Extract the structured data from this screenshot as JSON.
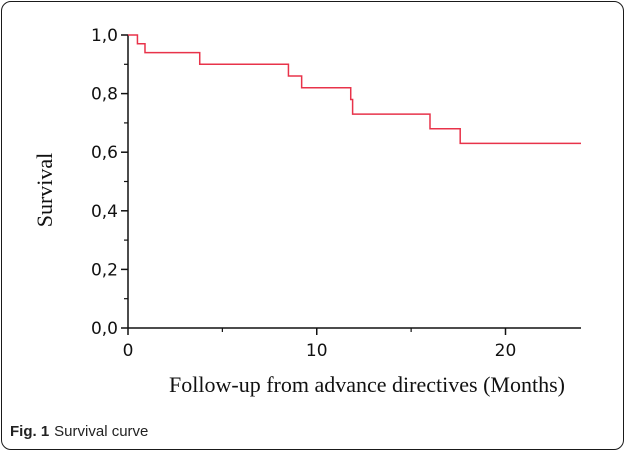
{
  "caption": {
    "label": "Fig. 1",
    "text": "Survival curve"
  },
  "chart_data": {
    "type": "line",
    "line_shape": "step",
    "title": "",
    "xlabel": "Follow-up from advance directives (Months)",
    "ylabel": "Survival",
    "xlim": [
      0,
      24
    ],
    "ylim": [
      0,
      1
    ],
    "x_major_ticks": [
      0,
      10,
      20
    ],
    "x_tick_labels": [
      "0",
      "10",
      "20"
    ],
    "x_minor_ticks": [
      5,
      15
    ],
    "y_major_ticks": [
      0,
      0.2,
      0.4,
      0.6,
      0.8,
      1.0
    ],
    "y_tick_labels": [
      "0,0",
      "0,2",
      "0,4",
      "0,6",
      "0,8",
      "1,0"
    ],
    "y_minor_ticks": [
      0.1,
      0.3,
      0.5,
      0.7,
      0.9
    ],
    "grid": false,
    "line_color": "#e8334a",
    "series": [
      {
        "x": [
          0,
          0.5,
          0.9,
          3.8,
          8.5,
          9.2,
          11.8,
          11.9,
          16.0,
          17.6,
          24.0
        ],
        "y": [
          1.0,
          0.97,
          0.94,
          0.9,
          0.86,
          0.82,
          0.78,
          0.73,
          0.68,
          0.63,
          0.63
        ]
      }
    ]
  }
}
